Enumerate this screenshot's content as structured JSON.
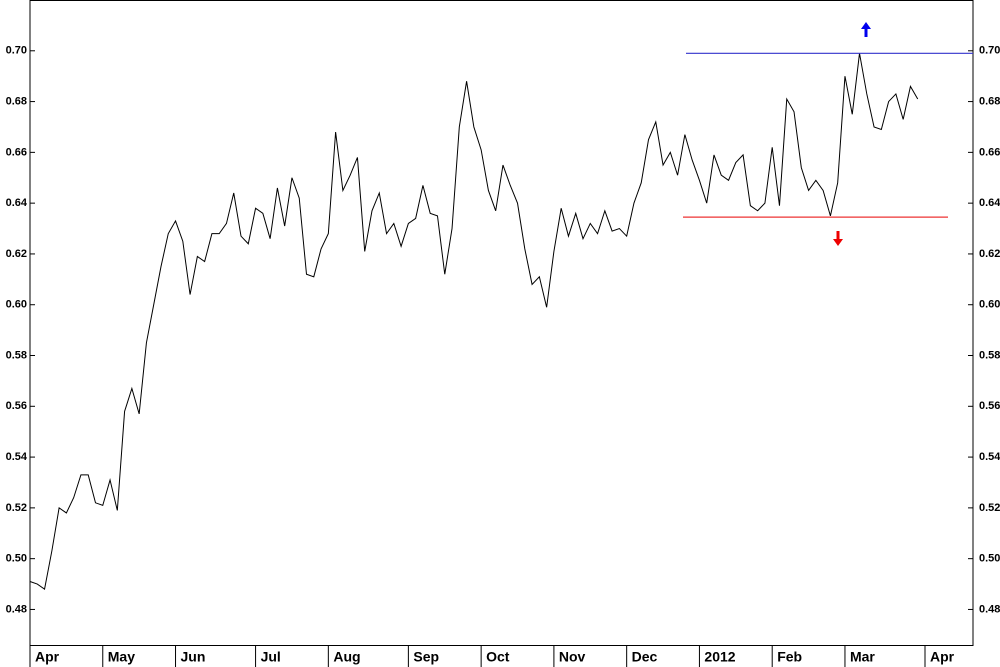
{
  "chart_data": {
    "type": "line",
    "categories": [
      "Apr",
      null,
      null,
      null,
      null,
      null,
      null,
      null,
      null,
      null,
      "May",
      null,
      null,
      null,
      null,
      null,
      null,
      null,
      null,
      null,
      "Jun",
      null,
      null,
      null,
      null,
      null,
      null,
      null,
      null,
      null,
      null,
      "Jul",
      null,
      null,
      null,
      null,
      null,
      null,
      null,
      null,
      null,
      "Aug",
      null,
      null,
      null,
      null,
      null,
      null,
      null,
      null,
      null,
      null,
      "Sep",
      null,
      null,
      null,
      null,
      null,
      null,
      null,
      null,
      null,
      "Oct",
      null,
      null,
      null,
      null,
      null,
      null,
      null,
      null,
      null,
      "Nov",
      null,
      null,
      null,
      null,
      null,
      null,
      null,
      null,
      null,
      "Dec",
      null,
      null,
      null,
      null,
      null,
      null,
      null,
      null,
      null,
      "2012",
      null,
      null,
      null,
      null,
      null,
      null,
      null,
      null,
      null,
      "Feb",
      null,
      null,
      null,
      null,
      null,
      null,
      null,
      null,
      null,
      "Mar",
      null,
      null,
      null,
      null,
      null,
      null,
      null,
      null,
      null,
      null,
      "Apr"
    ],
    "values": [
      0.491,
      0.49,
      0.488,
      0.503,
      0.52,
      0.518,
      0.524,
      0.533,
      0.533,
      0.522,
      0.521,
      0.531,
      0.519,
      0.558,
      0.567,
      0.557,
      0.585,
      0.6,
      0.615,
      0.628,
      0.633,
      0.625,
      0.604,
      0.619,
      0.617,
      0.628,
      0.628,
      0.632,
      0.644,
      0.627,
      0.624,
      0.638,
      0.636,
      0.626,
      0.646,
      0.631,
      0.65,
      0.642,
      0.612,
      0.611,
      0.622,
      0.628,
      0.668,
      0.645,
      0.651,
      0.658,
      0.621,
      0.637,
      0.644,
      0.628,
      0.632,
      0.623,
      0.632,
      0.634,
      0.647,
      0.636,
      0.635,
      0.612,
      0.63,
      0.67,
      0.688,
      0.67,
      0.661,
      0.645,
      0.637,
      0.655,
      0.647,
      0.64,
      0.622,
      0.608,
      0.611,
      0.599,
      0.621,
      0.638,
      0.627,
      0.636,
      0.626,
      0.632,
      0.628,
      0.637,
      0.629,
      0.63,
      0.627,
      0.64,
      0.648,
      0.665,
      0.672,
      0.655,
      0.66,
      0.651,
      0.667,
      0.657,
      0.649,
      0.64,
      0.659,
      0.651,
      0.649,
      0.656,
      0.659,
      0.639,
      0.637,
      0.64,
      0.662,
      0.639,
      0.681,
      0.676,
      0.654,
      0.645,
      0.649,
      0.645,
      0.635,
      0.648,
      0.69,
      0.675,
      0.699,
      0.683,
      0.67,
      0.669,
      0.68,
      0.683,
      0.673,
      0.686,
      0.681,
      null
    ],
    "color": "#000000",
    "ylim": [
      0.466,
      0.72
    ],
    "yticks": [
      0.48,
      {
        "value": 0.5,
        "label": "0.50"
      },
      0.52,
      0.54,
      0.56,
      0.58,
      {
        "value": 0.6,
        "label": "0.60"
      },
      0.62,
      0.64,
      0.66,
      0.68,
      {
        "value": 0.7,
        "label": "0.70"
      }
    ],
    "reference_lines": [
      {
        "value": 0.699,
        "color": "#3333cc"
      },
      {
        "value": 0.6345,
        "color": "#ee3333"
      }
    ]
  }
}
